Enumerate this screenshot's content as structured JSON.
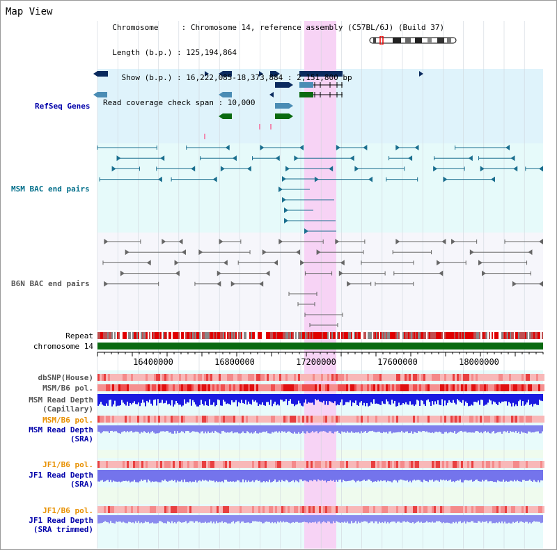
{
  "header": {
    "title": "Map View",
    "info_lines": [
      "  Chromosome     : Chromosome 14, reference assembly (C57BL/6J) (Build 37)",
      "  Length (b.p.) : 125,194,864",
      "    Show (b.p.) : 16,222,085-18,373,884 : 2,151,800 bp",
      "Read coverage check span : 10,000"
    ]
  },
  "tracks": {
    "refseq": "RefSeq Genes",
    "msm_bac": "MSM BAC end pairs",
    "b6n_bac": "B6N BAC end pairs",
    "repeat": "Repeat",
    "chromosome": "chromosome 14",
    "dbsnp": "dbSNP(House)",
    "msm_b6_pol_1": "MSM/B6 pol.",
    "msm_depth_cap_1": "MSM Read Depth",
    "msm_depth_cap_2": "(Capillary)",
    "msm_b6_pol_2": "MSM/B6 pol.",
    "msm_depth_sra_1": "MSM Read Depth",
    "msm_depth_sra_2": "(SRA)",
    "jf1_b6_pol_1": "JF1/B6 pol.",
    "jf1_depth_sra_1": "JF1 Read Depth",
    "jf1_depth_sra_2": "(SRA)",
    "jf1_b6_pol_2": "JF1/B6 pol.",
    "jf1_depth_trim_1": "JF1 Read Depth",
    "jf1_depth_trim_2": "(SRA trimmed)"
  },
  "axis": {
    "ticks": [
      "16400000",
      "16800000",
      "17200000",
      "17600000",
      "18000000"
    ]
  },
  "colors": {
    "refseq_bg": "#dff3fb",
    "highlight": "#f7d3f5",
    "gene_dark": "#0a2a5e",
    "gene_mid": "#4a8cb4",
    "gene_green": "#0a6a10",
    "msm_pair": "#1a6e8e",
    "b6n_pair": "#666666",
    "chromosome_bar": "#0a6a10",
    "label_blue": "#0000aa",
    "label_teal": "#006e8a",
    "label_gray": "#555555",
    "label_orange": "#e89000"
  }
}
